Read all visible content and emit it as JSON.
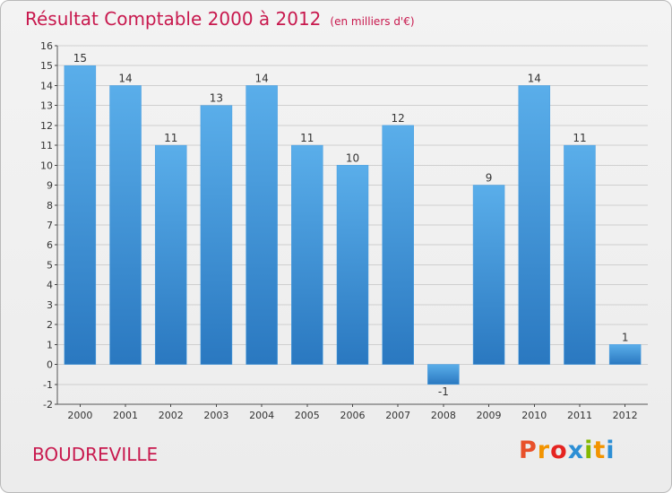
{
  "header": {
    "title": "Résultat Comptable 2000 à 2012",
    "subtitle": "(en milliers d'€)"
  },
  "footer": {
    "commune": "BOUDREVILLE",
    "logo_text": "Proxiti",
    "logo_colors": [
      "#e8502a",
      "#f29400",
      "#e52421",
      "#2d8fd5",
      "#84b800",
      "#f29400",
      "#2d8fd5"
    ]
  },
  "colors": {
    "accent": "#c8194e",
    "bar_light": "#5aaeea",
    "bar_dark": "#2a78c0",
    "grid": "#cfcfcf"
  },
  "chart_data": {
    "type": "bar",
    "categories": [
      "2000",
      "2001",
      "2002",
      "2003",
      "2004",
      "2005",
      "2006",
      "2007",
      "2008",
      "2009",
      "2010",
      "2011",
      "2012"
    ],
    "values": [
      15,
      14,
      11,
      13,
      14,
      11,
      10,
      12,
      -1,
      9,
      14,
      11,
      1
    ],
    "data_labels": [
      "15",
      "14",
      "11",
      "13",
      "14",
      "11",
      "10",
      "12",
      "-1",
      "9",
      "14",
      "11",
      "1"
    ],
    "yticks": [
      "-2",
      "-1",
      "0",
      "1",
      "2",
      "3",
      "4",
      "5",
      "6",
      "7",
      "8",
      "9",
      "10",
      "11",
      "12",
      "13",
      "14",
      "15",
      "16"
    ],
    "ylim": [
      -2,
      16
    ],
    "grid": true
  }
}
